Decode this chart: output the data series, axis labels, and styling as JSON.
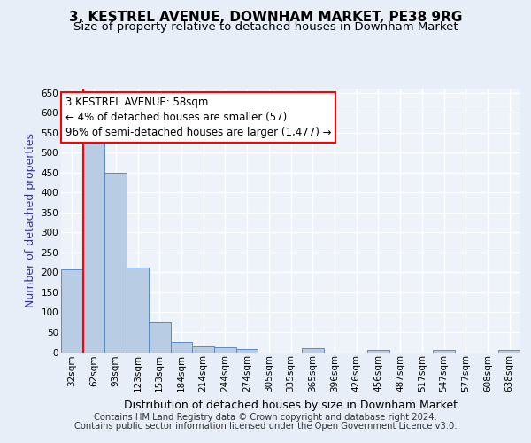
{
  "title1": "3, KESTREL AVENUE, DOWNHAM MARKET, PE38 9RG",
  "title2": "Size of property relative to detached houses in Downham Market",
  "xlabel": "Distribution of detached houses by size in Downham Market",
  "ylabel": "Number of detached properties",
  "categories": [
    "32sqm",
    "62sqm",
    "93sqm",
    "123sqm",
    "153sqm",
    "184sqm",
    "214sqm",
    "244sqm",
    "274sqm",
    "305sqm",
    "335sqm",
    "365sqm",
    "396sqm",
    "426sqm",
    "456sqm",
    "487sqm",
    "517sqm",
    "547sqm",
    "577sqm",
    "608sqm",
    "638sqm"
  ],
  "values": [
    208,
    530,
    450,
    212,
    77,
    26,
    15,
    12,
    7,
    0,
    0,
    9,
    0,
    0,
    6,
    0,
    0,
    6,
    0,
    0,
    6
  ],
  "bar_color": "#b8cce4",
  "bar_edge_color": "#5a8ac6",
  "annotation_text": "3 KESTREL AVENUE: 58sqm\n← 4% of detached houses are smaller (57)\n96% of semi-detached houses are larger (1,477) →",
  "annotation_box_color": "white",
  "annotation_box_edge": "red",
  "vertical_line_color": "red",
  "vertical_line_x": 0.5,
  "footer1": "Contains HM Land Registry data © Crown copyright and database right 2024.",
  "footer2": "Contains public sector information licensed under the Open Government Licence v3.0.",
  "ylim": [
    0,
    660
  ],
  "yticks": [
    0,
    50,
    100,
    150,
    200,
    250,
    300,
    350,
    400,
    450,
    500,
    550,
    600,
    650
  ],
  "background_color": "#e8eef7",
  "plot_bg_color": "#eef2f9",
  "grid_color": "white",
  "title1_fontsize": 11,
  "title2_fontsize": 9.5,
  "tick_fontsize": 7.5,
  "ylabel_fontsize": 9,
  "xlabel_fontsize": 9,
  "annotation_fontsize": 8.5,
  "footer_fontsize": 7.2,
  "ylabel_color": "#333399"
}
